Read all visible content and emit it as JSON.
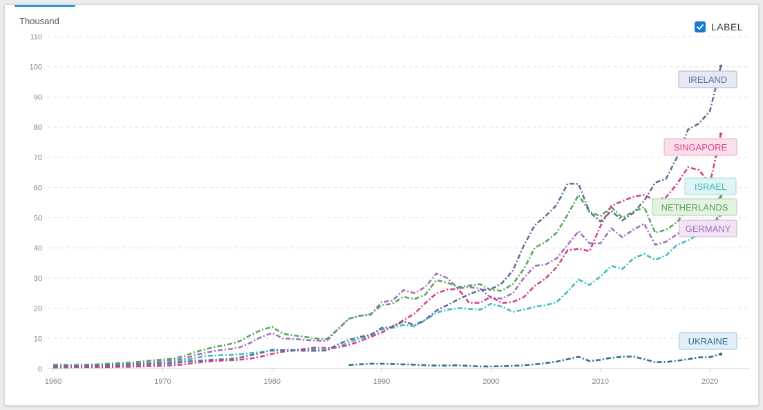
{
  "unit_label": "Thousand",
  "toggle": {
    "label": "LABEL",
    "checked": true,
    "icon": "checkmark-icon"
  },
  "chart_data": {
    "type": "line",
    "title": "",
    "xlabel": "",
    "ylabel": "Thousand",
    "xlim": [
      1960,
      2021
    ],
    "ylim": [
      0,
      110
    ],
    "x_ticks": [
      1960,
      1970,
      1980,
      1990,
      2000,
      2010,
      2020
    ],
    "y_ticks": [
      0,
      10,
      20,
      30,
      40,
      50,
      60,
      70,
      80,
      90,
      100,
      110
    ],
    "grid": "horizontal",
    "legend": "none",
    "series": [
      {
        "name": "UKRAINE",
        "color": "#2e6f94",
        "label_bg": "#e3eef7",
        "label_border": "#9ec1dc",
        "x": [
          1987,
          1988,
          1989,
          1990,
          1991,
          1992,
          1993,
          1994,
          1995,
          1996,
          1997,
          1998,
          1999,
          2000,
          2001,
          2002,
          2003,
          2004,
          2005,
          2006,
          2007,
          2008,
          2009,
          2010,
          2011,
          2012,
          2013,
          2014,
          2015,
          2016,
          2017,
          2018,
          2019,
          2020,
          2021
        ],
        "y": [
          1.2,
          1.4,
          1.6,
          1.6,
          1.5,
          1.4,
          1.3,
          1.1,
          1.0,
          1.0,
          1.1,
          0.9,
          0.7,
          0.7,
          0.8,
          0.9,
          1.1,
          1.4,
          1.8,
          2.3,
          3.1,
          3.9,
          2.5,
          2.9,
          3.6,
          3.9,
          4.0,
          3.1,
          2.1,
          2.2,
          2.6,
          3.1,
          3.7,
          3.8,
          4.8
        ]
      },
      {
        "name": "ISRAEL",
        "color": "#3fbcc0",
        "label_bg": "#dff4f5",
        "label_border": "#9fdde0",
        "x": [
          1960,
          1961,
          1962,
          1963,
          1964,
          1965,
          1966,
          1967,
          1968,
          1969,
          1970,
          1971,
          1972,
          1973,
          1974,
          1975,
          1976,
          1977,
          1978,
          1979,
          1980,
          1981,
          1982,
          1983,
          1984,
          1985,
          1986,
          1987,
          1988,
          1989,
          1990,
          1991,
          1992,
          1993,
          1994,
          1995,
          1996,
          1997,
          1998,
          1999,
          2000,
          2001,
          2002,
          2003,
          2004,
          2005,
          2006,
          2007,
          2008,
          2009,
          2010,
          2011,
          2012,
          2013,
          2014,
          2015,
          2016,
          2017,
          2018,
          2019,
          2020,
          2021
        ],
        "y": [
          1.3,
          1.3,
          1.0,
          1.1,
          1.2,
          1.4,
          1.4,
          1.5,
          1.7,
          1.8,
          2.0,
          2.2,
          2.7,
          3.5,
          4.2,
          4.4,
          4.5,
          4.7,
          5.1,
          5.5,
          5.9,
          6.1,
          6.2,
          6.5,
          6.3,
          6.1,
          7.2,
          8.6,
          10.0,
          10.8,
          13.0,
          13.5,
          14.5,
          14.0,
          16.0,
          18.5,
          19.5,
          20.0,
          19.8,
          19.5,
          21.5,
          20.5,
          18.8,
          19.5,
          20.5,
          21.0,
          22.0,
          25.5,
          29.5,
          27.7,
          30.5,
          34.0,
          33.0,
          36.5,
          38.0,
          36.0,
          37.5,
          41.0,
          42.5,
          44.5,
          46.0,
          52.0
        ]
      },
      {
        "name": "GERMANY",
        "color": "#a46fbf",
        "label_bg": "#f0e4f5",
        "label_border": "#cfb0dd",
        "x": [
          1960,
          1961,
          1962,
          1963,
          1964,
          1965,
          1966,
          1967,
          1968,
          1969,
          1970,
          1971,
          1972,
          1973,
          1974,
          1975,
          1976,
          1977,
          1978,
          1979,
          1980,
          1981,
          1982,
          1983,
          1984,
          1985,
          1986,
          1987,
          1988,
          1989,
          1990,
          1991,
          1992,
          1993,
          1994,
          1995,
          1996,
          1997,
          1998,
          1999,
          2000,
          2001,
          2002,
          2003,
          2004,
          2005,
          2006,
          2007,
          2008,
          2009,
          2010,
          2011,
          2012,
          2013,
          2014,
          2015,
          2016,
          2017,
          2018,
          2019,
          2020,
          2021
        ],
        "y": [
          1.2,
          1.0,
          1.1,
          1.2,
          1.3,
          1.4,
          1.5,
          1.6,
          1.7,
          2.0,
          2.5,
          2.8,
          3.3,
          4.5,
          5.3,
          6.0,
          6.4,
          7.0,
          8.5,
          10.5,
          11.8,
          10.0,
          9.8,
          9.5,
          9.3,
          9.2,
          13.0,
          16.5,
          17.5,
          17.8,
          22.0,
          22.5,
          26.0,
          25.0,
          27.0,
          31.5,
          30.0,
          26.5,
          27.0,
          26.5,
          23.5,
          23.2,
          25.0,
          30.0,
          34.0,
          34.5,
          36.5,
          41.0,
          45.5,
          41.5,
          41.5,
          46.5,
          43.5,
          46.0,
          48.0,
          41.0,
          42.0,
          44.5,
          47.5,
          46.5,
          46.0,
          51.0
        ]
      },
      {
        "name": "NETHERLANDS",
        "color": "#58a65c",
        "label_bg": "#e4f2e2",
        "label_border": "#a9d3a7",
        "x": [
          1960,
          1961,
          1962,
          1963,
          1964,
          1965,
          1966,
          1967,
          1968,
          1969,
          1970,
          1971,
          1972,
          1973,
          1974,
          1975,
          1976,
          1977,
          1978,
          1979,
          1980,
          1981,
          1982,
          1983,
          1984,
          1985,
          1986,
          1987,
          1988,
          1989,
          1990,
          1991,
          1992,
          1993,
          1994,
          1995,
          1996,
          1997,
          1998,
          1999,
          2000,
          2001,
          2002,
          2003,
          2004,
          2005,
          2006,
          2007,
          2008,
          2009,
          2010,
          2011,
          2012,
          2013,
          2014,
          2015,
          2016,
          2017,
          2018,
          2019,
          2020,
          2021
        ],
        "y": [
          1.0,
          1.1,
          1.2,
          1.3,
          1.4,
          1.6,
          1.8,
          2.0,
          2.3,
          2.7,
          3.0,
          3.3,
          4.2,
          5.5,
          6.5,
          7.3,
          8.0,
          9.0,
          11.0,
          12.8,
          13.8,
          11.5,
          11.0,
          10.5,
          10.0,
          9.8,
          13.0,
          16.5,
          17.5,
          18.0,
          21.0,
          21.5,
          23.8,
          23.0,
          24.5,
          29.3,
          28.5,
          27.0,
          27.5,
          28.0,
          26.0,
          25.8,
          28.0,
          33.0,
          40.0,
          42.0,
          45.0,
          51.0,
          57.5,
          52.0,
          50.5,
          53.5,
          50.0,
          52.0,
          53.5,
          45.0,
          46.0,
          48.5,
          53.5,
          53.0,
          53.0,
          57.0
        ]
      },
      {
        "name": "SINGAPORE",
        "color": "#d94088",
        "label_bg": "#fbe0ec",
        "label_border": "#efa4c6",
        "x": [
          1960,
          1961,
          1962,
          1963,
          1964,
          1965,
          1966,
          1967,
          1968,
          1969,
          1970,
          1971,
          1972,
          1973,
          1974,
          1975,
          1976,
          1977,
          1978,
          1979,
          1980,
          1981,
          1982,
          1983,
          1984,
          1985,
          1986,
          1987,
          1988,
          1989,
          1990,
          1991,
          1992,
          1993,
          1994,
          1995,
          1996,
          1997,
          1998,
          1999,
          2000,
          2001,
          2002,
          2003,
          2004,
          2005,
          2006,
          2007,
          2008,
          2009,
          2010,
          2011,
          2012,
          2013,
          2014,
          2015,
          2016,
          2017,
          2018,
          2019,
          2020,
          2021
        ],
        "y": [
          0.4,
          0.4,
          0.5,
          0.5,
          0.5,
          0.5,
          0.6,
          0.6,
          0.7,
          0.8,
          0.9,
          1.1,
          1.4,
          1.9,
          2.3,
          2.6,
          2.7,
          2.9,
          3.3,
          4.0,
          4.9,
          5.6,
          6.0,
          6.5,
          7.0,
          6.8,
          7.0,
          7.8,
          9.0,
          10.5,
          11.9,
          14.0,
          16.0,
          18.2,
          21.7,
          24.9,
          26.2,
          26.4,
          21.8,
          21.8,
          23.8,
          21.7,
          22.1,
          23.7,
          27.4,
          29.9,
          33.6,
          39.2,
          39.7,
          38.9,
          47.2,
          53.9,
          55.5,
          56.9,
          57.6,
          55.6,
          56.8,
          61.2,
          66.7,
          65.8,
          61.3,
          77.7
        ]
      },
      {
        "name": "IRELAND",
        "color": "#5f6f98",
        "label_bg": "#e6e9f3",
        "label_border": "#a9b2cf",
        "x": [
          1960,
          1961,
          1962,
          1963,
          1964,
          1965,
          1966,
          1967,
          1968,
          1969,
          1970,
          1971,
          1972,
          1973,
          1974,
          1975,
          1976,
          1977,
          1978,
          1979,
          1980,
          1981,
          1982,
          1983,
          1984,
          1985,
          1986,
          1987,
          1988,
          1989,
          1990,
          1991,
          1992,
          1993,
          1994,
          1995,
          1996,
          1997,
          1998,
          1999,
          2000,
          2001,
          2002,
          2003,
          2004,
          2005,
          2006,
          2007,
          2008,
          2009,
          2010,
          2011,
          2012,
          2013,
          2014,
          2015,
          2016,
          2017,
          2018,
          2019,
          2020,
          2021
        ],
        "y": [
          0.7,
          0.8,
          0.8,
          0.9,
          1.0,
          1.0,
          1.1,
          1.2,
          1.3,
          1.4,
          1.6,
          1.8,
          2.2,
          2.6,
          2.8,
          3.0,
          3.1,
          3.6,
          4.4,
          5.2,
          6.2,
          6.1,
          6.0,
          5.9,
          5.9,
          6.0,
          8.0,
          9.5,
          10.5,
          11.2,
          13.5,
          13.8,
          15.7,
          14.4,
          16.2,
          19.2,
          21.0,
          22.9,
          24.6,
          26.0,
          26.3,
          28.3,
          32.5,
          40.8,
          47.5,
          50.6,
          54.2,
          61.3,
          61.2,
          51.9,
          48.7,
          52.2,
          49.1,
          51.6,
          55.6,
          61.6,
          62.9,
          70.1,
          79.2,
          81.2,
          85.3,
          100.2
        ]
      }
    ]
  }
}
